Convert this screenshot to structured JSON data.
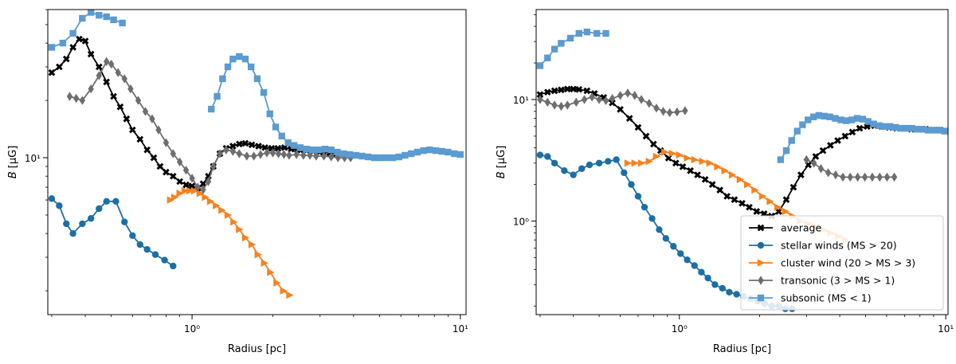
{
  "chart_data": [
    {
      "type": "line",
      "xscale": "log",
      "yscale": "log",
      "xlim": [
        0.29,
        10.5
      ],
      "ylim": [
        1.5,
        60
      ],
      "xlabel": "Radius [pc]",
      "ylabel": "B [μG]",
      "xticks": [
        {
          "value": 1,
          "label": "10⁰"
        },
        {
          "value": 10,
          "label": "10¹"
        }
      ],
      "yticks": [
        {
          "value": 10,
          "label": "10¹"
        }
      ],
      "legend": null,
      "series": [
        {
          "name": "average",
          "color": "#000000",
          "marker": "x",
          "x": [
            0.3,
            0.32,
            0.34,
            0.36,
            0.38,
            0.4,
            0.42,
            0.45,
            0.48,
            0.51,
            0.54,
            0.57,
            0.6,
            0.64,
            0.68,
            0.72,
            0.76,
            0.8,
            0.85,
            0.9,
            0.95,
            1.0,
            1.05,
            1.1,
            1.15,
            1.2,
            1.27,
            1.34,
            1.42,
            1.5,
            1.58,
            1.67,
            1.77,
            1.87,
            1.98,
            2.09,
            2.21,
            2.34,
            2.47,
            2.61,
            2.76,
            2.92,
            3.08,
            3.26,
            3.45
          ],
          "y": [
            28,
            30,
            33,
            38,
            42,
            41,
            35,
            30,
            25,
            21,
            18.5,
            16,
            14,
            12.5,
            11,
            10,
            9,
            8.4,
            8,
            7.5,
            7.2,
            7.1,
            6.9,
            7.3,
            8,
            9,
            10.5,
            11.2,
            11.5,
            11.8,
            11.9,
            11.7,
            11.5,
            11.3,
            11.2,
            11.2,
            11.3,
            11.1,
            11.0,
            11.0,
            10.9,
            10.8,
            10.7,
            10.6,
            10.5
          ]
        },
        {
          "name": "stellar winds (MS > 20)",
          "color": "#1b6fa6",
          "marker": "o",
          "x": [
            0.3,
            0.32,
            0.34,
            0.36,
            0.39,
            0.42,
            0.45,
            0.48,
            0.52,
            0.56,
            0.6,
            0.64,
            0.68,
            0.73,
            0.79,
            0.85
          ],
          "y": [
            6.1,
            5.6,
            4.5,
            4.0,
            4.5,
            4.8,
            5.4,
            5.9,
            5.9,
            4.6,
            3.9,
            3.5,
            3.3,
            3.1,
            2.9,
            2.7
          ]
        },
        {
          "name": "cluster wind (20 > MS > 3)",
          "color": "#f5821f",
          "marker": ">",
          "x": [
            0.83,
            0.86,
            0.9,
            0.94,
            0.98,
            1.02,
            1.07,
            1.12,
            1.17,
            1.23,
            1.29,
            1.36,
            1.43,
            1.5,
            1.58,
            1.67,
            1.76,
            1.86,
            1.96,
            2.07,
            2.19,
            2.31
          ],
          "y": [
            6.0,
            6.2,
            6.5,
            6.7,
            6.7,
            6.7,
            6.5,
            6.2,
            5.9,
            5.6,
            5.3,
            5.0,
            4.6,
            4.2,
            3.8,
            3.5,
            3.1,
            2.8,
            2.5,
            2.2,
            2.0,
            1.9
          ]
        },
        {
          "name": "transonic (3 > MS > 1)",
          "color": "#6e6e6e",
          "marker": "d",
          "x": [
            0.35,
            0.37,
            0.39,
            0.42,
            0.45,
            0.48,
            0.5,
            0.53,
            0.56,
            0.59,
            0.63,
            0.67,
            0.71,
            0.75,
            0.8,
            0.85,
            0.9,
            0.95,
            1.0,
            1.05,
            1.1,
            1.15,
            1.2,
            1.27,
            1.34,
            1.42,
            1.5,
            1.6,
            1.7,
            1.8,
            1.9,
            2.0,
            2.1,
            2.2,
            2.3,
            2.45,
            2.6,
            2.75,
            2.9,
            3.1,
            3.3,
            3.5,
            3.7,
            3.9
          ],
          "y": [
            21,
            20.5,
            20,
            23,
            27,
            32,
            31,
            28,
            26,
            23,
            20,
            17.5,
            16,
            14,
            12,
            10.5,
            9.5,
            8.6,
            7.8,
            7.0,
            6.8,
            7.5,
            9.0,
            10.5,
            11.0,
            10.8,
            10.5,
            10.2,
            10.2,
            10.4,
            10.6,
            10.6,
            10.5,
            10.4,
            10.3,
            10.4,
            10.3,
            10.3,
            10.2,
            10.2,
            10.1,
            10.0,
            10.0,
            10.0
          ]
        },
        {
          "name": "subsonic (MS < 1)",
          "color": "#5b9bd1",
          "marker": "s",
          "x": [
            0.3,
            0.33,
            0.36,
            0.39,
            0.42,
            0.45,
            0.48,
            0.51,
            0.55,
            1.18,
            1.24,
            1.3,
            1.36,
            1.42,
            1.5,
            1.58,
            1.66,
            1.75,
            1.85,
            1.95,
            2.05,
            2.16,
            2.28,
            2.4,
            2.53,
            2.67,
            2.82,
            2.97,
            3.13,
            3.3,
            3.48,
            3.67,
            3.87,
            4.08,
            4.3,
            4.53,
            4.78,
            5.04,
            5.31,
            5.6,
            5.9,
            6.22,
            6.56,
            6.92,
            7.29,
            7.69,
            8.1,
            8.54,
            9.0,
            9.5,
            10.0
          ],
          "y": [
            38,
            40,
            45,
            54,
            58,
            56,
            55,
            53,
            51,
            18,
            21,
            26,
            30,
            33,
            34,
            33,
            30,
            26,
            22,
            17,
            14.5,
            13,
            12,
            11.6,
            11.3,
            11.1,
            11.0,
            11.0,
            11.1,
            11.0,
            10.7,
            10.5,
            10.4,
            10.3,
            10.2,
            10.1,
            10.0,
            10.0,
            10.0,
            10.0,
            10.1,
            10.3,
            10.5,
            10.7,
            10.9,
            11.0,
            10.9,
            10.8,
            10.7,
            10.5,
            10.4
          ]
        }
      ]
    },
    {
      "type": "line",
      "xscale": "log",
      "yscale": "log",
      "xlim": [
        0.29,
        10.2
      ],
      "ylim": [
        0.17,
        55
      ],
      "xlabel": "Radius [pc]",
      "ylabel": "B [μG]",
      "xticks": [
        {
          "value": 1,
          "label": "10⁰"
        },
        {
          "value": 10,
          "label": "10¹"
        }
      ],
      "yticks": [
        {
          "value": 1,
          "label": "10⁰"
        },
        {
          "value": 10,
          "label": "10¹"
        }
      ],
      "legend": "lower right",
      "series": [
        {
          "name": "average",
          "color": "#000000",
          "marker": "x",
          "x": [
            0.3,
            0.32,
            0.34,
            0.36,
            0.38,
            0.4,
            0.42,
            0.45,
            0.48,
            0.52,
            0.56,
            0.6,
            0.65,
            0.7,
            0.75,
            0.8,
            0.85,
            0.91,
            0.97,
            1.03,
            1.1,
            1.17,
            1.25,
            1.33,
            1.42,
            1.51,
            1.61,
            1.72,
            1.83,
            1.95,
            2.08,
            2.22,
            2.36,
            2.52,
            2.68,
            2.86,
            3.05,
            3.25,
            3.46,
            3.69,
            3.93,
            4.19,
            4.46,
            4.75,
            5.07,
            5.4,
            5.75,
            6.13,
            6.53,
            6.96,
            7.42,
            7.9,
            8.42,
            8.97,
            9.56,
            10.0
          ],
          "y": [
            11.0,
            11.5,
            11.8,
            12.0,
            12.2,
            12.2,
            12.1,
            11.8,
            11.2,
            10.4,
            9.4,
            8.3,
            7.0,
            5.9,
            5.0,
            4.3,
            3.8,
            3.3,
            3.0,
            2.8,
            2.6,
            2.4,
            2.2,
            2.0,
            1.8,
            1.6,
            1.5,
            1.4,
            1.3,
            1.2,
            1.15,
            1.1,
            1.2,
            1.5,
            1.9,
            2.4,
            2.9,
            3.4,
            3.8,
            4.2,
            4.6,
            5.0,
            5.4,
            5.8,
            6.0,
            6.1,
            6.0,
            5.9,
            5.8,
            5.8,
            5.7,
            5.7,
            5.7,
            5.6,
            5.6,
            5.5
          ]
        },
        {
          "name": "stellar winds (MS > 20)",
          "color": "#1b6fa6",
          "marker": "o",
          "x": [
            0.3,
            0.32,
            0.34,
            0.37,
            0.4,
            0.43,
            0.46,
            0.5,
            0.54,
            0.58,
            0.62,
            0.66,
            0.7,
            0.74,
            0.79,
            0.84,
            0.89,
            0.95,
            1.01,
            1.07,
            1.14,
            1.21,
            1.28,
            1.36,
            1.45,
            1.54,
            1.64,
            1.74,
            1.85,
            1.97,
            2.09,
            2.22,
            2.36,
            2.5,
            2.65
          ],
          "y": [
            3.5,
            3.4,
            3.0,
            2.6,
            2.4,
            2.7,
            2.9,
            3.0,
            3.1,
            3.2,
            2.5,
            2.0,
            1.6,
            1.3,
            1.05,
            0.85,
            0.72,
            0.62,
            0.54,
            0.48,
            0.43,
            0.38,
            0.34,
            0.3,
            0.28,
            0.26,
            0.25,
            0.24,
            0.23,
            0.22,
            0.21,
            0.2,
            0.2,
            0.19,
            0.19
          ]
        },
        {
          "name": "cluster wind (20 > MS > 3)",
          "color": "#f5821f",
          "marker": ">",
          "x": [
            0.64,
            0.68,
            0.72,
            0.77,
            0.82,
            0.88,
            0.94,
            1.0,
            1.07,
            1.14,
            1.22,
            1.3,
            1.39,
            1.48,
            1.58,
            1.69,
            1.8,
            1.92,
            2.05,
            2.19,
            2.34,
            2.5,
            2.66,
            2.84,
            3.04,
            3.24,
            3.46,
            3.7,
            3.95,
            4.21
          ],
          "y": [
            3.0,
            3.0,
            3.0,
            3.1,
            3.4,
            3.7,
            3.6,
            3.5,
            3.3,
            3.2,
            3.1,
            3.0,
            2.8,
            2.6,
            2.4,
            2.2,
            2.0,
            1.8,
            1.6,
            1.45,
            1.3,
            1.2,
            1.1,
            1.0,
            0.95,
            0.9,
            0.85,
            0.8,
            0.75,
            0.7
          ]
        },
        {
          "name": "transonic (3 > MS > 1)",
          "color": "#6e6e6e",
          "marker": "d",
          "x": [
            0.3,
            0.32,
            0.34,
            0.36,
            0.38,
            0.41,
            0.44,
            0.47,
            0.5,
            0.53,
            0.56,
            0.6,
            0.64,
            0.68,
            0.72,
            0.77,
            0.82,
            0.87,
            0.92,
            0.98,
            1.05,
            3.0,
            3.2,
            3.4,
            3.62,
            3.86,
            4.11,
            4.38,
            4.67,
            4.97,
            5.3,
            5.65,
            6.02,
            6.41
          ],
          "y": [
            10.0,
            9.5,
            9.0,
            8.8,
            9.0,
            9.5,
            10.0,
            10.5,
            10.0,
            9.8,
            10.2,
            10.8,
            11.3,
            10.8,
            10.0,
            9.3,
            8.5,
            8.0,
            7.8,
            7.9,
            8.1,
            3.2,
            3.0,
            2.7,
            2.5,
            2.4,
            2.3,
            2.3,
            2.3,
            2.3,
            2.3,
            2.3,
            2.3,
            2.3
          ]
        },
        {
          "name": "subsonic (MS < 1)",
          "color": "#5b9bd1",
          "marker": "s",
          "x": [
            0.3,
            0.32,
            0.34,
            0.36,
            0.39,
            0.42,
            0.45,
            0.49,
            0.53,
            2.4,
            2.52,
            2.64,
            2.77,
            2.9,
            3.04,
            3.19,
            3.34,
            3.5,
            3.67,
            3.85,
            4.04,
            4.23,
            4.44,
            4.65,
            4.88,
            5.11,
            5.36,
            5.62,
            5.89,
            6.18,
            6.48,
            6.79,
            7.12,
            7.46,
            7.82,
            8.2,
            8.6,
            9.01,
            9.45,
            9.9
          ],
          "y": [
            19,
            22,
            26,
            29,
            32,
            35,
            36,
            35,
            35,
            3.2,
            3.8,
            4.6,
            5.5,
            6.2,
            6.8,
            7.2,
            7.4,
            7.3,
            7.2,
            7.0,
            6.8,
            6.7,
            6.8,
            7.0,
            6.9,
            6.6,
            6.3,
            6.1,
            6.0,
            6.0,
            5.9,
            5.8,
            5.8,
            5.8,
            5.7,
            5.7,
            5.6,
            5.6,
            5.6,
            5.5
          ]
        }
      ]
    }
  ]
}
